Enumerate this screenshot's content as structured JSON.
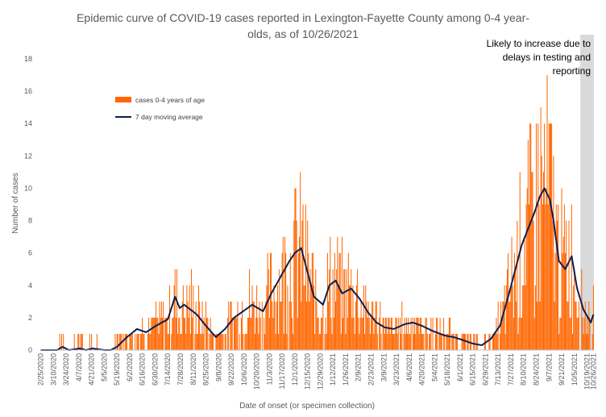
{
  "chart_data": {
    "type": "bar",
    "title_lines": [
      "Epidemic curve of COVID-19 cases reported in Lexington-Fayette County among 0-4 year-",
      "olds, as of 10/26/2021"
    ],
    "xlabel": "Date of onset (or specimen collection)",
    "ylabel": "Number of cases",
    "ylim": [
      0,
      18
    ],
    "yticks": [
      0,
      2,
      4,
      6,
      8,
      10,
      12,
      14,
      16,
      18
    ],
    "grid": false,
    "legend_position": "upper-left",
    "date_start": "2/25/2020",
    "date_end": "10/26/2021",
    "x_tick_labels": [
      "2/25/2020",
      "3/10/2020",
      "3/24/2020",
      "4/7/2020",
      "4/21/2020",
      "5/5/2020",
      "5/19/2020",
      "6/2/2020",
      "6/16/2020",
      "6/30/2020",
      "7/14/2020",
      "7/28/2020",
      "8/11/2020",
      "8/25/2020",
      "9/8/2020",
      "9/22/2020",
      "10/6/2020",
      "10/20/2020",
      "11/3/2020",
      "11/17/2020",
      "12/1/2020",
      "12/15/2020",
      "12/29/2020",
      "1/12/2021",
      "1/26/2021",
      "2/9/2021",
      "2/23/2021",
      "3/9/2021",
      "3/23/2021",
      "4/6/2021",
      "4/20/2021",
      "5/4/2021",
      "5/18/2021",
      "6/1/2021",
      "6/15/2021",
      "6/29/2021",
      "7/13/2021",
      "7/27/2021",
      "8/10/2021",
      "8/24/2021",
      "9/7/2021",
      "9/21/2021",
      "10/5/2021",
      "10/19/2021",
      "10/26/2021"
    ],
    "series": [
      {
        "name": "cases 0-4 years of age",
        "kind": "bar",
        "color": "#ff6600"
      },
      {
        "name": "7 day moving average",
        "kind": "line",
        "color": "#0d1d4f"
      }
    ],
    "shaded_region": {
      "start": "10/12/2021",
      "end": "10/26/2021",
      "color": "#d9d9d9",
      "note": "Likely to increase due to delays in testing and reporting"
    },
    "anchors": [
      [
        "2/25/2020",
        0,
        0
      ],
      [
        "3/14/2020",
        0,
        0
      ],
      [
        "3/20/2020",
        0.2,
        0.2
      ],
      [
        "3/27/2020",
        0,
        0
      ],
      [
        "4/8/2020",
        0.2,
        0.1
      ],
      [
        "4/15/2020",
        0,
        0
      ],
      [
        "4/22/2020",
        0.2,
        0.1
      ],
      [
        "5/5/2020",
        0,
        0
      ],
      [
        "5/12/2020",
        0,
        0
      ],
      [
        "5/19/2020",
        0.2,
        0.2
      ],
      [
        "5/30/2020",
        0.8,
        0.8
      ],
      [
        "6/10/2020",
        1.2,
        1.3
      ],
      [
        "6/20/2020",
        1.0,
        1.1
      ],
      [
        "7/1/2020",
        1.5,
        1.5
      ],
      [
        "7/14/2020",
        2.0,
        1.9
      ],
      [
        "7/22/2020",
        3.4,
        3.3
      ],
      [
        "7/27/2020",
        2.5,
        2.6
      ],
      [
        "8/1/2020",
        2.8,
        2.8
      ],
      [
        "8/15/2020",
        2.2,
        2.2
      ],
      [
        "8/25/2020",
        1.5,
        1.5
      ],
      [
        "9/5/2020",
        0.8,
        0.8
      ],
      [
        "9/15/2020",
        1.3,
        1.3
      ],
      [
        "9/25/2020",
        2.0,
        2.0
      ],
      [
        "10/5/2020",
        2.3,
        2.4
      ],
      [
        "10/15/2020",
        2.8,
        2.8
      ],
      [
        "10/27/2020",
        2.4,
        2.4
      ],
      [
        "11/5/2020",
        3.5,
        3.5
      ],
      [
        "11/15/2020",
        4.5,
        4.5
      ],
      [
        "11/25/2020",
        5.5,
        5.5
      ],
      [
        "12/1/2020",
        6.0,
        6.0
      ],
      [
        "12/8/2020",
        6.2,
        6.3
      ],
      [
        "12/15/2020",
        4.8,
        4.8
      ],
      [
        "12/22/2020",
        3.3,
        3.3
      ],
      [
        "1/1/2021",
        2.8,
        2.8
      ],
      [
        "1/8/2021",
        4.0,
        4.0
      ],
      [
        "1/15/2021",
        4.3,
        4.3
      ],
      [
        "1/22/2021",
        3.5,
        3.5
      ],
      [
        "2/1/2021",
        3.8,
        3.8
      ],
      [
        "2/10/2021",
        3.2,
        3.2
      ],
      [
        "2/20/2021",
        2.3,
        2.3
      ],
      [
        "3/1/2021",
        1.7,
        1.7
      ],
      [
        "3/10/2021",
        1.4,
        1.4
      ],
      [
        "3/20/2021",
        1.3,
        1.3
      ],
      [
        "4/1/2021",
        1.6,
        1.6
      ],
      [
        "4/10/2021",
        1.7,
        1.7
      ],
      [
        "4/20/2021",
        1.4,
        1.5
      ],
      [
        "5/1/2021",
        1.2,
        1.2
      ],
      [
        "5/15/2021",
        0.9,
        0.9
      ],
      [
        "5/25/2021",
        0.8,
        0.8
      ],
      [
        "6/5/2021",
        0.6,
        0.6
      ],
      [
        "6/15/2021",
        0.4,
        0.4
      ],
      [
        "6/25/2021",
        0.3,
        0.3
      ],
      [
        "7/5/2021",
        0.7,
        0.7
      ],
      [
        "7/15/2021",
        1.5,
        1.5
      ],
      [
        "7/25/2021",
        3.5,
        3.5
      ],
      [
        "8/1/2021",
        5.0,
        5.0
      ],
      [
        "8/8/2021",
        6.5,
        6.5
      ],
      [
        "8/15/2021",
        7.5,
        7.5
      ],
      [
        "8/22/2021",
        8.5,
        8.5
      ],
      [
        "8/28/2021",
        9.5,
        9.5
      ],
      [
        "9/2/2021",
        10.0,
        10.0
      ],
      [
        "9/8/2021",
        9.3,
        9.3
      ],
      [
        "9/12/2021",
        8.0,
        8.0
      ],
      [
        "9/18/2021",
        5.5,
        5.5
      ],
      [
        "9/25/2021",
        5.0,
        5.0
      ],
      [
        "10/2/2021",
        5.8,
        5.8
      ],
      [
        "10/8/2021",
        3.8,
        3.8
      ],
      [
        "10/15/2021",
        2.5,
        2.5
      ],
      [
        "10/20/2021",
        2.0,
        2.0
      ],
      [
        "10/23/2021",
        1.7,
        1.7
      ],
      [
        "10/26/2021",
        2.2,
        2.2
      ]
    ]
  }
}
